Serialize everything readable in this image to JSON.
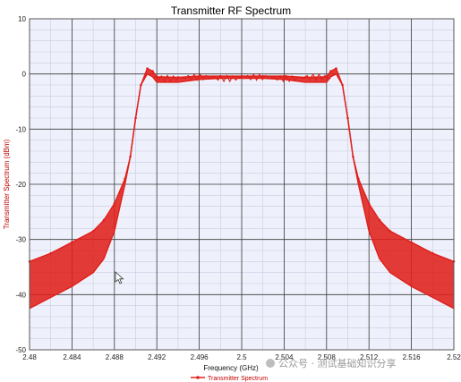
{
  "chart_data": {
    "type": "line",
    "title": "Transmitter RF Spectrum",
    "xlabel": "Frequency (GHz)",
    "ylabel": "Transmitter Spectrum (dBm)",
    "xlim": [
      2.48,
      2.52
    ],
    "ylim": [
      -50,
      10
    ],
    "xticks": [
      "2.48",
      "2.484",
      "2.488",
      "2.492",
      "2.496",
      "2.5",
      "2.504",
      "2.508",
      "2.512",
      "2.516",
      "2.52"
    ],
    "yticks": [
      "10",
      "0",
      "-10",
      "-20",
      "-30",
      "-40",
      "-50"
    ],
    "grid": true,
    "legend": "bottom-center",
    "series": [
      {
        "name": "Transmitter Spectrum",
        "color": "#e0201b",
        "upper": [
          [
            2.48,
            -34
          ],
          [
            2.482,
            -32.5
          ],
          [
            2.484,
            -30.5
          ],
          [
            2.486,
            -28.5
          ],
          [
            2.487,
            -26.5
          ],
          [
            2.488,
            -23.5
          ],
          [
            2.489,
            -19
          ],
          [
            2.4895,
            -15
          ],
          [
            2.49,
            -8
          ],
          [
            2.4905,
            -2
          ],
          [
            2.4911,
            1
          ],
          [
            2.4916,
            0.5
          ],
          [
            2.492,
            -0.5
          ],
          [
            2.494,
            -0.6
          ],
          [
            2.496,
            -0.4
          ],
          [
            2.498,
            -0.4
          ],
          [
            2.5,
            -0.4
          ],
          [
            2.502,
            -0.4
          ],
          [
            2.504,
            -0.4
          ],
          [
            2.506,
            -0.6
          ],
          [
            2.508,
            -0.5
          ],
          [
            2.5084,
            0.5
          ],
          [
            2.5089,
            1
          ],
          [
            2.5095,
            -2
          ],
          [
            2.51,
            -8
          ],
          [
            2.5105,
            -15
          ],
          [
            2.511,
            -19
          ],
          [
            2.512,
            -23.5
          ],
          [
            2.513,
            -26.5
          ],
          [
            2.514,
            -28.5
          ],
          [
            2.516,
            -30.5
          ],
          [
            2.518,
            -32.5
          ],
          [
            2.52,
            -34
          ]
        ],
        "lower": [
          [
            2.48,
            -42.5
          ],
          [
            2.482,
            -40.5
          ],
          [
            2.484,
            -38.5
          ],
          [
            2.486,
            -36
          ],
          [
            2.487,
            -33.5
          ],
          [
            2.488,
            -28.5
          ],
          [
            2.489,
            -20
          ],
          [
            2.4895,
            -15
          ],
          [
            2.49,
            -8
          ],
          [
            2.4905,
            -2
          ],
          [
            2.4911,
            0
          ],
          [
            2.4916,
            -0.5
          ],
          [
            2.492,
            -1.5
          ],
          [
            2.494,
            -1.5
          ],
          [
            2.496,
            -1
          ],
          [
            2.498,
            -0.8
          ],
          [
            2.5,
            -0.8
          ],
          [
            2.502,
            -0.8
          ],
          [
            2.504,
            -1
          ],
          [
            2.506,
            -1.5
          ],
          [
            2.508,
            -1.5
          ],
          [
            2.5084,
            -0.5
          ],
          [
            2.5089,
            0
          ],
          [
            2.5095,
            -2
          ],
          [
            2.51,
            -8
          ],
          [
            2.5105,
            -15
          ],
          [
            2.511,
            -20
          ],
          [
            2.512,
            -28.5
          ],
          [
            2.513,
            -33.5
          ],
          [
            2.514,
            -36
          ],
          [
            2.516,
            -38.5
          ],
          [
            2.518,
            -40.5
          ],
          [
            2.52,
            -42.5
          ]
        ]
      }
    ]
  },
  "watermark": "公众号 · 测试基础知识分享",
  "colors": {
    "plot_bg": "#eef1fb",
    "grid_major": "#3a3a3a",
    "grid_minor": "#c8cde0",
    "axis_label": "#c00000",
    "trace": "#e0201b"
  }
}
